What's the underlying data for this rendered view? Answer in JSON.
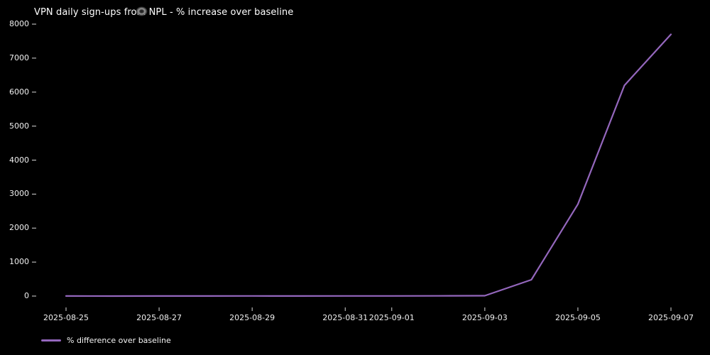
{
  "window": {
    "background": "#000000",
    "text_color": "#ffffff"
  },
  "chart_data": {
    "type": "line",
    "title": "VPN daily sign-ups from NPL - % increase over baseline",
    "xlabel": "",
    "ylabel": "",
    "grid": false,
    "background": "#000000",
    "x": [
      "2025-08-25",
      "2025-08-26",
      "2025-08-27",
      "2025-08-28",
      "2025-08-29",
      "2025-08-30",
      "2025-08-31",
      "2025-09-01",
      "2025-09-02",
      "2025-09-03",
      "2025-09-04",
      "2025-09-05",
      "2025-09-06",
      "2025-09-07"
    ],
    "series": [
      {
        "name": "% difference over baseline",
        "color": "#9467bd",
        "values": [
          2,
          1,
          3,
          2,
          4,
          3,
          5,
          4,
          6,
          10,
          480,
          2700,
          6200,
          7700
        ]
      }
    ],
    "x_tick_labels": [
      "2025-08-25",
      "2025-08-27",
      "2025-08-29",
      "2025-08-31",
      "2025-09-01",
      "2025-09-03",
      "2025-09-05",
      "2025-09-07"
    ],
    "y_ticks": [
      0,
      1000,
      2000,
      3000,
      4000,
      5000,
      6000,
      7000,
      8000
    ],
    "ylim": [
      0,
      8000
    ],
    "legend_position": "lower-left-below-axes",
    "tick_color": "#d9d9d9"
  },
  "legend": {
    "label": "% difference over baseline"
  },
  "artifacts": {
    "smudge_note": ""
  }
}
